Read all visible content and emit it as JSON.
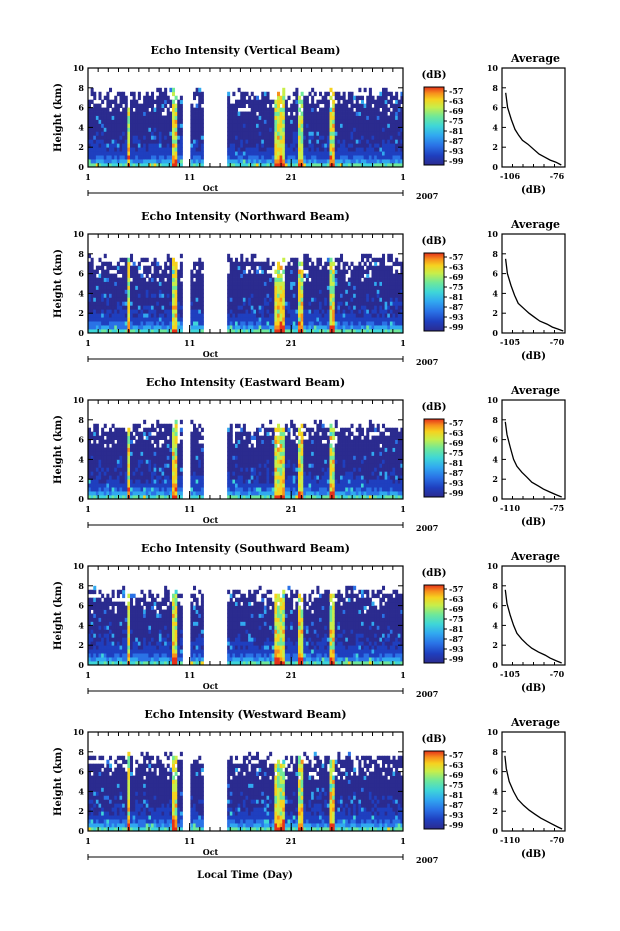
{
  "figure": {
    "xlabel": "Local Time (Day)",
    "month_label": "Oct",
    "year_label": "2007",
    "x_tick_labels": [
      "1",
      "11",
      "21",
      "1"
    ],
    "y_tick_labels": [
      "0",
      "2",
      "4",
      "6",
      "8",
      "10"
    ],
    "colorbar_unit": "(dB)",
    "colorbar_ticks": [
      "-57",
      "-63",
      "-69",
      "-75",
      "-81",
      "-87",
      "-93",
      "-99"
    ],
    "colors": {
      "scale": [
        "#2b2b8f",
        "#1f3fbf",
        "#2a72e6",
        "#31a9f0",
        "#3fd6d8",
        "#6ee89a",
        "#c8ee4a",
        "#f6d21f",
        "#f7901c",
        "#e5311a"
      ],
      "line": "#000000"
    }
  },
  "chart_data": [
    {
      "type": "heatmap",
      "title": "Echo Intensity (Vertical Beam)",
      "ylabel": "Height (km)",
      "xlim": [
        1,
        32
      ],
      "ylim": [
        0,
        10
      ],
      "x_ticks": [
        1,
        11,
        21,
        32
      ],
      "y_ticks": [
        0,
        2,
        4,
        6,
        8,
        10
      ],
      "value_unit": "dB",
      "color_range": [
        -99,
        -57
      ],
      "data_gaps_days": [
        [
          10.3,
          11.2
        ],
        [
          12.4,
          14.8
        ]
      ],
      "strong_echo_days": [
        5,
        9.5,
        19.5,
        20,
        22,
        25
      ]
    },
    {
      "type": "line",
      "title": "Average",
      "xlabel": "(dB)",
      "xlim": [
        -106,
        -72
      ],
      "x_tick_labels": [
        "-106",
        "-76"
      ],
      "ylim": [
        0,
        10
      ],
      "x": [
        -104,
        -103,
        -101,
        -99,
        -97,
        -95,
        -92,
        -89,
        -86,
        -83,
        -80,
        -77,
        -74
      ],
      "y": [
        7.5,
        6.0,
        4.8,
        3.8,
        3.2,
        2.7,
        2.3,
        1.8,
        1.3,
        1.0,
        0.7,
        0.5,
        0.2
      ]
    },
    {
      "type": "heatmap",
      "title": "Echo Intensity (Northward Beam)",
      "ylabel": "Height (km)",
      "xlim": [
        1,
        32
      ],
      "ylim": [
        0,
        10
      ],
      "x_ticks": [
        1,
        11,
        21,
        32
      ],
      "y_ticks": [
        0,
        2,
        4,
        6,
        8,
        10
      ],
      "value_unit": "dB",
      "color_range": [
        -99,
        -57
      ],
      "data_gaps_days": [
        [
          10.3,
          11.2
        ],
        [
          12.4,
          14.8
        ]
      ],
      "strong_echo_days": [
        5,
        9.5,
        19.5,
        20,
        22,
        25
      ]
    },
    {
      "type": "line",
      "title": "Average",
      "xlabel": "(dB)",
      "xlim": [
        -105,
        -70
      ],
      "x_tick_labels": [
        "-105",
        "-70"
      ],
      "ylim": [
        0,
        10
      ],
      "x": [
        -103,
        -102,
        -100,
        -98,
        -96,
        -93,
        -90,
        -87,
        -84,
        -80,
        -77,
        -74,
        -71
      ],
      "y": [
        7.5,
        6.0,
        4.8,
        3.8,
        3.0,
        2.5,
        2.0,
        1.6,
        1.2,
        0.9,
        0.6,
        0.4,
        0.2
      ]
    },
    {
      "type": "heatmap",
      "title": "Echo Intensity (Eastward Beam)",
      "ylabel": "Height (km)",
      "xlim": [
        1,
        32
      ],
      "ylim": [
        0,
        10
      ],
      "x_ticks": [
        1,
        11,
        21,
        32
      ],
      "y_ticks": [
        0,
        2,
        4,
        6,
        8,
        10
      ],
      "value_unit": "dB",
      "color_range": [
        -99,
        -57
      ],
      "data_gaps_days": [
        [
          10.3,
          11.2
        ],
        [
          12.4,
          14.8
        ]
      ],
      "strong_echo_days": [
        5,
        9.5,
        19.5,
        20,
        22,
        25
      ]
    },
    {
      "type": "line",
      "title": "Average",
      "xlabel": "(dB)",
      "xlim": [
        -110,
        -72
      ],
      "x_tick_labels": [
        "-110",
        "-75"
      ],
      "ylim": [
        0,
        10
      ],
      "x": [
        -108,
        -107,
        -105,
        -103,
        -101,
        -98,
        -95,
        -92,
        -88,
        -85,
        -81,
        -77,
        -74
      ],
      "y": [
        7.8,
        6.5,
        5.2,
        4.0,
        3.3,
        2.7,
        2.2,
        1.7,
        1.3,
        1.0,
        0.7,
        0.4,
        0.2
      ]
    },
    {
      "type": "heatmap",
      "title": "Echo Intensity (Southward Beam)",
      "ylabel": "Height (km)",
      "xlim": [
        1,
        32
      ],
      "ylim": [
        0,
        10
      ],
      "x_ticks": [
        1,
        11,
        21,
        32
      ],
      "y_ticks": [
        0,
        2,
        4,
        6,
        8,
        10
      ],
      "value_unit": "dB",
      "color_range": [
        -99,
        -57
      ],
      "data_gaps_days": [
        [
          10.3,
          11.2
        ],
        [
          12.4,
          14.8
        ]
      ],
      "strong_echo_days": [
        5,
        9.5,
        19.5,
        20,
        22,
        25
      ]
    },
    {
      "type": "line",
      "title": "Average",
      "xlabel": "(dB)",
      "xlim": [
        -106,
        -68
      ],
      "x_tick_labels": [
        "-105",
        "-70"
      ],
      "ylim": [
        0,
        10
      ],
      "x": [
        -104,
        -103,
        -101,
        -99,
        -97,
        -94,
        -91,
        -88,
        -84,
        -80,
        -77,
        -73,
        -70
      ],
      "y": [
        7.6,
        6.2,
        5.0,
        4.0,
        3.2,
        2.6,
        2.1,
        1.7,
        1.3,
        1.0,
        0.7,
        0.4,
        0.2
      ]
    },
    {
      "type": "heatmap",
      "title": "Echo Intensity (Westward Beam)",
      "ylabel": "Height (km)",
      "xlim": [
        1,
        32
      ],
      "ylim": [
        0,
        10
      ],
      "x_ticks": [
        1,
        11,
        21,
        32
      ],
      "y_ticks": [
        0,
        2,
        4,
        6,
        8,
        10
      ],
      "value_unit": "dB",
      "color_range": [
        -99,
        -57
      ],
      "data_gaps_days": [
        [
          10.3,
          11.2
        ],
        [
          12.4,
          14.8
        ]
      ],
      "strong_echo_days": [
        5,
        9.5,
        19.5,
        20,
        22,
        25
      ]
    },
    {
      "type": "line",
      "title": "Average",
      "xlabel": "(dB)",
      "xlim": [
        -112,
        -68
      ],
      "x_tick_labels": [
        "-110",
        "-70"
      ],
      "ylim": [
        0,
        10
      ],
      "x": [
        -110,
        -109,
        -107,
        -104,
        -101,
        -97,
        -93,
        -89,
        -85,
        -81,
        -77,
        -73,
        -70
      ],
      "y": [
        7.6,
        6.3,
        5.0,
        4.0,
        3.2,
        2.6,
        2.1,
        1.7,
        1.3,
        1.0,
        0.7,
        0.4,
        0.2
      ]
    }
  ]
}
